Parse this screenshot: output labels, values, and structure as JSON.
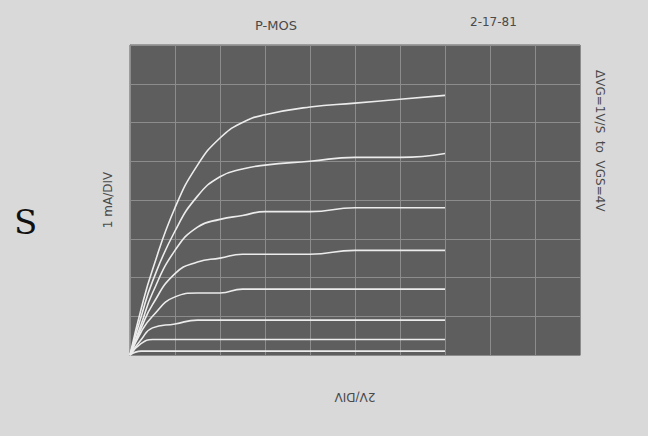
{
  "chart_data": {
    "type": "line",
    "title": "P-MOS",
    "x_label": "2V/DIV",
    "y_label": "1 mA/DIV",
    "annotations": [
      "2-17-81",
      "ΔVG=1V/S  to  VGS=4V",
      "S"
    ],
    "x": [
      0,
      0.5,
      1,
      2,
      3,
      4,
      5,
      6,
      8,
      10,
      12,
      14
    ],
    "series": [
      {
        "color": "#ececec",
        "values": [
          0,
          1.2,
          2.2,
          3.8,
          4.9,
          5.6,
          6.0,
          6.2,
          6.4,
          6.5,
          6.6,
          6.7
        ]
      },
      {
        "color": "#ececec",
        "values": [
          0,
          1.0,
          1.9,
          3.2,
          4.1,
          4.6,
          4.8,
          4.9,
          5.0,
          5.1,
          5.1,
          5.2
        ]
      },
      {
        "color": "#ececec",
        "values": [
          0,
          0.8,
          1.6,
          2.7,
          3.3,
          3.5,
          3.6,
          3.7,
          3.7,
          3.8,
          3.8,
          3.8
        ]
      },
      {
        "color": "#ececec",
        "values": [
          0,
          0.7,
          1.3,
          2.1,
          2.4,
          2.5,
          2.6,
          2.6,
          2.6,
          2.7,
          2.7,
          2.7
        ]
      },
      {
        "color": "#ececec",
        "values": [
          0,
          0.6,
          1.0,
          1.5,
          1.6,
          1.6,
          1.7,
          1.7,
          1.7,
          1.7,
          1.7,
          1.7
        ]
      },
      {
        "color": "#ececec",
        "values": [
          0,
          0.4,
          0.7,
          0.8,
          0.9,
          0.9,
          0.9,
          0.9,
          0.9,
          0.9,
          0.9,
          0.9
        ]
      },
      {
        "color": "#ececec",
        "values": [
          0,
          0.3,
          0.4,
          0.4,
          0.4,
          0.4,
          0.4,
          0.4,
          0.4,
          0.4,
          0.4,
          0.4
        ]
      },
      {
        "color": "#ececec",
        "values": [
          0,
          0.1,
          0.1,
          0.1,
          0.1,
          0.1,
          0.1,
          0.1,
          0.1,
          0.1,
          0.1,
          0.1
        ]
      }
    ],
    "xlim": [
      0,
      20
    ],
    "xticks": [
      0,
      2,
      4,
      6,
      8,
      10,
      12,
      14,
      16,
      18,
      20
    ],
    "ylim": [
      0,
      8
    ],
    "yticks": [
      0,
      1,
      2,
      3,
      4,
      5,
      6,
      7,
      8
    ],
    "grid": true,
    "tick_labels": false,
    "line_style": "solid"
  }
}
